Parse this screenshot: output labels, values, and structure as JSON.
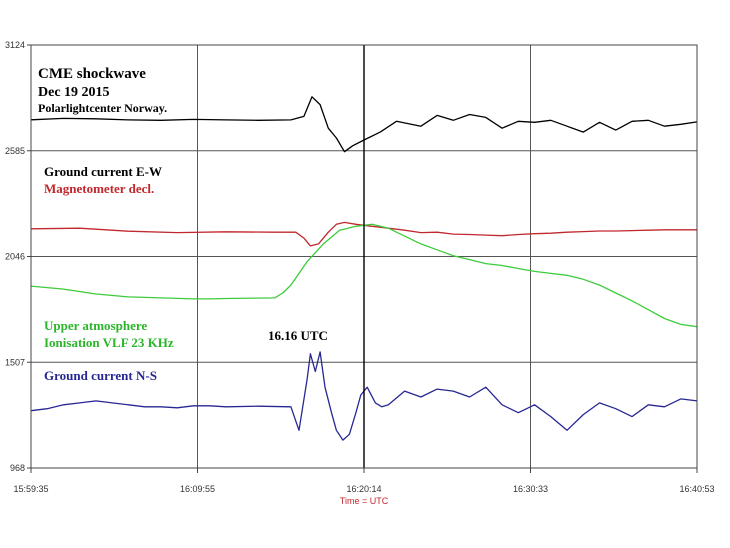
{
  "chart_data": {
    "type": "line",
    "title": "CME shockwave",
    "subtitle": "Dec 19 2015",
    "source": "Polarlightcenter Norway.",
    "xlabel": "Time = UTC",
    "ylabel": "",
    "x_ticks": [
      "15:59:35",
      "16:09:55",
      "16:20:14",
      "16:30:33",
      "16:40:53"
    ],
    "y_ticks": [
      "968",
      "1507",
      "2046",
      "2585",
      "3124"
    ],
    "ylim": [
      968,
      3124
    ],
    "grid": true,
    "cursor_time": "16:20:14",
    "event_label": "16.16 UTC",
    "series": [
      {
        "name": "Ground current E-W",
        "color": "#000000",
        "label_lines": [
          "Ground current E-W"
        ],
        "points": [
          [
            0,
            2743
          ],
          [
            2,
            2750
          ],
          [
            4,
            2748
          ],
          [
            6,
            2742
          ],
          [
            8,
            2740
          ],
          [
            10,
            2745
          ],
          [
            12,
            2742
          ],
          [
            14,
            2740
          ],
          [
            16,
            2742
          ],
          [
            16.8,
            2760
          ],
          [
            17.3,
            2860
          ],
          [
            17.8,
            2820
          ],
          [
            18.3,
            2700
          ],
          [
            18.8,
            2650
          ],
          [
            19.3,
            2580
          ],
          [
            19.8,
            2610
          ],
          [
            20.5,
            2640
          ],
          [
            21.5,
            2680
          ],
          [
            22.5,
            2735
          ],
          [
            24,
            2710
          ],
          [
            25,
            2765
          ],
          [
            26,
            2740
          ],
          [
            27,
            2770
          ],
          [
            28,
            2755
          ],
          [
            29,
            2700
          ],
          [
            30,
            2735
          ],
          [
            31,
            2730
          ],
          [
            32,
            2740
          ],
          [
            33,
            2710
          ],
          [
            34,
            2680
          ],
          [
            35,
            2730
          ],
          [
            36,
            2690
          ],
          [
            37,
            2735
          ],
          [
            38,
            2740
          ],
          [
            39,
            2710
          ],
          [
            40,
            2720
          ],
          [
            41,
            2732
          ]
        ]
      },
      {
        "name": "Magnetometer decl.",
        "color": "#c0282d",
        "label_lines": [
          "Magnetometer decl."
        ],
        "points": [
          [
            0,
            2187
          ],
          [
            3,
            2190
          ],
          [
            6,
            2175
          ],
          [
            9,
            2168
          ],
          [
            12,
            2172
          ],
          [
            15,
            2170
          ],
          [
            16.3,
            2170
          ],
          [
            16.8,
            2140
          ],
          [
            17.2,
            2100
          ],
          [
            17.7,
            2110
          ],
          [
            18.3,
            2170
          ],
          [
            18.8,
            2210
          ],
          [
            19.3,
            2220
          ],
          [
            20,
            2210
          ],
          [
            21,
            2200
          ],
          [
            22,
            2190
          ],
          [
            23,
            2180
          ],
          [
            24,
            2168
          ],
          [
            25,
            2170
          ],
          [
            26,
            2160
          ],
          [
            27,
            2158
          ],
          [
            28,
            2155
          ],
          [
            29,
            2152
          ],
          [
            30,
            2158
          ],
          [
            31,
            2162
          ],
          [
            32,
            2165
          ],
          [
            33,
            2170
          ],
          [
            34,
            2173
          ],
          [
            35,
            2176
          ],
          [
            36,
            2176
          ],
          [
            37,
            2178
          ],
          [
            38,
            2180
          ],
          [
            39,
            2182
          ],
          [
            40,
            2182
          ],
          [
            41,
            2182
          ]
        ]
      },
      {
        "name": "Upper atmosphere Ionisation VLF 23 KHz",
        "color": "#3dcb3d",
        "label_lines": [
          "Upper atmosphere",
          "Ionisation VLF 23 KHz"
        ],
        "points": [
          [
            0,
            1895
          ],
          [
            2,
            1880
          ],
          [
            4,
            1855
          ],
          [
            6,
            1840
          ],
          [
            8,
            1835
          ],
          [
            10,
            1830
          ],
          [
            11,
            1830
          ],
          [
            12,
            1832
          ],
          [
            15,
            1835
          ],
          [
            15.5,
            1860
          ],
          [
            16,
            1900
          ],
          [
            17,
            2020
          ],
          [
            18,
            2110
          ],
          [
            19,
            2180
          ],
          [
            20,
            2200
          ],
          [
            21,
            2210
          ],
          [
            22,
            2190
          ],
          [
            23,
            2150
          ],
          [
            24,
            2110
          ],
          [
            25,
            2080
          ],
          [
            26,
            2050
          ],
          [
            27,
            2030
          ],
          [
            28,
            2010
          ],
          [
            29,
            2000
          ],
          [
            30,
            1985
          ],
          [
            31,
            1970
          ],
          [
            32,
            1960
          ],
          [
            33,
            1950
          ],
          [
            34,
            1930
          ],
          [
            35,
            1900
          ],
          [
            36,
            1860
          ],
          [
            37,
            1820
          ],
          [
            38,
            1775
          ],
          [
            39,
            1730
          ],
          [
            40,
            1700
          ],
          [
            41,
            1688
          ]
        ]
      },
      {
        "name": "Ground current N-S",
        "color": "#272794",
        "label_lines": [
          "Ground current N-S"
        ],
        "points": [
          [
            0,
            1260
          ],
          [
            1,
            1270
          ],
          [
            2,
            1290
          ],
          [
            3,
            1300
          ],
          [
            4,
            1310
          ],
          [
            5,
            1300
          ],
          [
            6,
            1290
          ],
          [
            7,
            1280
          ],
          [
            8,
            1280
          ],
          [
            9,
            1275
          ],
          [
            10,
            1285
          ],
          [
            11,
            1285
          ],
          [
            12,
            1280
          ],
          [
            14,
            1283
          ],
          [
            16,
            1280
          ],
          [
            16.5,
            1160
          ],
          [
            17,
            1420
          ],
          [
            17.2,
            1550
          ],
          [
            17.5,
            1460
          ],
          [
            17.8,
            1560
          ],
          [
            18.1,
            1380
          ],
          [
            18.5,
            1250
          ],
          [
            18.8,
            1160
          ],
          [
            19.2,
            1110
          ],
          [
            19.6,
            1140
          ],
          [
            20,
            1250
          ],
          [
            20.3,
            1340
          ],
          [
            20.7,
            1380
          ],
          [
            21.2,
            1300
          ],
          [
            21.6,
            1280
          ],
          [
            22,
            1290
          ],
          [
            23,
            1360
          ],
          [
            24,
            1330
          ],
          [
            25,
            1370
          ],
          [
            26,
            1360
          ],
          [
            27,
            1330
          ],
          [
            28,
            1380
          ],
          [
            29,
            1290
          ],
          [
            30,
            1250
          ],
          [
            31,
            1290
          ],
          [
            32,
            1230
          ],
          [
            33,
            1160
          ],
          [
            34,
            1240
          ],
          [
            35,
            1300
          ],
          [
            36,
            1270
          ],
          [
            37,
            1230
          ],
          [
            38,
            1290
          ],
          [
            39,
            1280
          ],
          [
            40,
            1320
          ],
          [
            41,
            1310
          ]
        ]
      }
    ]
  }
}
